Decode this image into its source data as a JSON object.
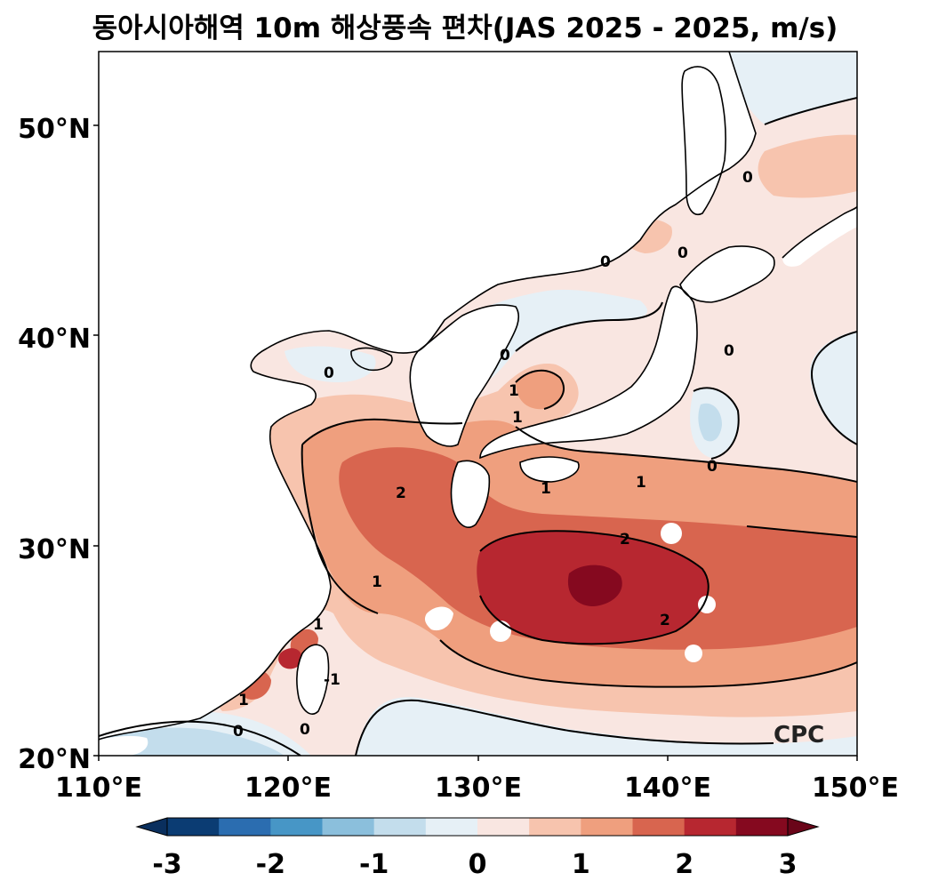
{
  "title": "동아시아해역 10m 해상풍속 편차(JAS 2025 - 2025, m/s)",
  "watermark": "CPC",
  "map": {
    "lon_range": [
      110,
      150
    ],
    "lat_range": [
      20,
      53.5
    ],
    "x_ticks": [
      "110°E",
      "120°E",
      "130°E",
      "140°E",
      "150°E"
    ],
    "y_ticks": [
      "20°N",
      "30°N",
      "40°N",
      "50°N"
    ],
    "contour_labels": [
      "0",
      "0",
      "0",
      "0",
      "0",
      "0",
      "0",
      "0",
      "0",
      "1",
      "1",
      "1",
      "1",
      "1",
      "1",
      "1",
      "2",
      "2",
      "2",
      "-1"
    ]
  },
  "colorbar": {
    "ticks": [
      "-3",
      "-2",
      "-1",
      "0",
      "1",
      "2",
      "3"
    ],
    "levels": [
      -3,
      -2.5,
      -2,
      -1.5,
      -1,
      -0.5,
      0,
      0.5,
      1,
      1.5,
      2,
      2.5,
      3
    ],
    "colors": [
      "#0b3c73",
      "#2b6db0",
      "#4796c6",
      "#8bbfdc",
      "#c3ddec",
      "#e6f0f6",
      "#f9e6e1",
      "#f7c4ae",
      "#ef9f7e",
      "#d8654f",
      "#b72730",
      "#85091f"
    ],
    "under_color": "#0a2f5e",
    "over_color": "#6a0519"
  },
  "colors": {
    "land": "#ffffff",
    "coast": "#000000"
  }
}
